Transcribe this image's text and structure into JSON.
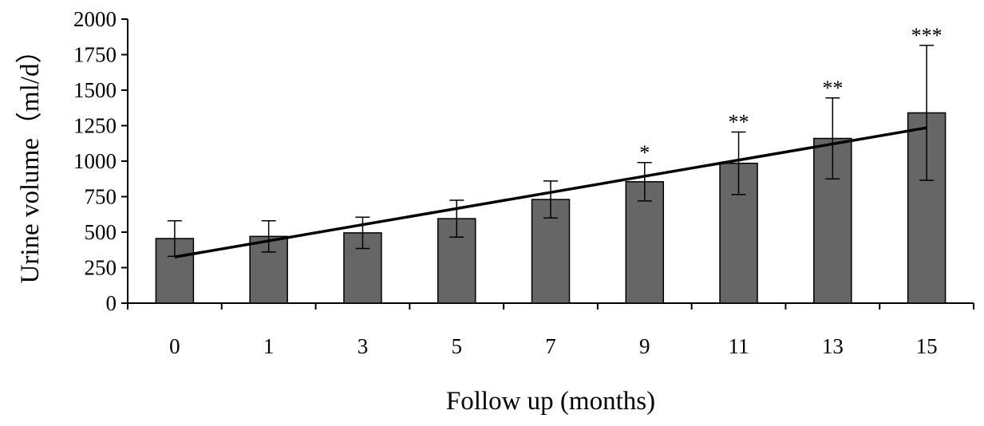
{
  "chart_data": {
    "type": "bar",
    "title": "",
    "xlabel": "Follow up (months)",
    "ylabel": "Urine volume（ml/d）",
    "categories": [
      "0",
      "1",
      "3",
      "5",
      "7",
      "9",
      "11",
      "13",
      "15"
    ],
    "series": [
      {
        "values": [
          455,
          470,
          495,
          595,
          730,
          855,
          985,
          1160,
          1340
        ],
        "error": [
          125,
          110,
          110,
          130,
          130,
          135,
          220,
          285,
          475
        ]
      }
    ],
    "significance": [
      "",
      "",
      "",
      "",
      "",
      "*",
      "**",
      "**",
      "***"
    ],
    "trendline": {
      "start": 325,
      "end": 1235
    },
    "ylim": [
      0,
      2000
    ],
    "yticks": [
      0,
      250,
      500,
      750,
      1000,
      1250,
      1500,
      1750,
      2000
    ],
    "grid": false,
    "legend": "none",
    "colors": {
      "bar": "#666666",
      "bar_edge": "#000000",
      "trendline": "#000000"
    }
  }
}
